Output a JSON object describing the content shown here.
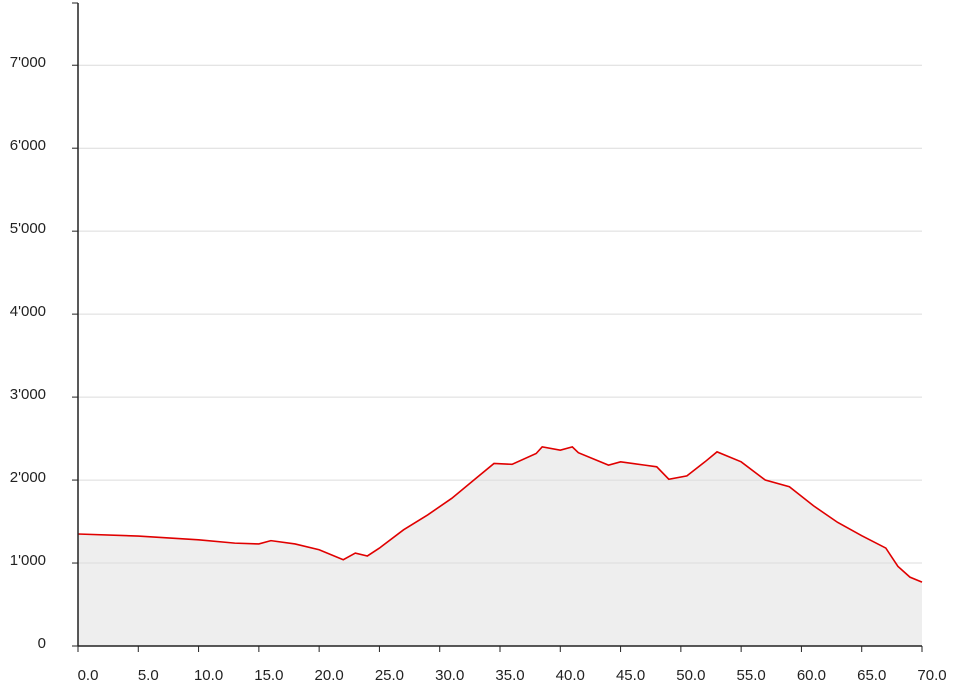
{
  "chart_data": {
    "type": "area",
    "x": [
      0,
      5,
      10,
      13,
      15,
      16,
      18,
      20,
      22,
      23,
      24,
      25,
      27,
      29,
      31,
      33,
      34.5,
      36,
      38,
      38.5,
      40,
      41,
      41.5,
      44,
      45,
      47,
      48,
      49,
      50.5,
      52,
      53,
      55,
      57,
      59,
      61,
      63,
      65,
      67,
      68,
      69,
      70
    ],
    "values": [
      1350,
      1325,
      1280,
      1240,
      1230,
      1270,
      1230,
      1160,
      1040,
      1120,
      1085,
      1180,
      1400,
      1580,
      1780,
      2020,
      2200,
      2190,
      2320,
      2400,
      2360,
      2400,
      2330,
      2180,
      2220,
      2180,
      2160,
      2010,
      2050,
      2220,
      2340,
      2220,
      2000,
      1920,
      1690,
      1490,
      1330,
      1180,
      960,
      830,
      770
    ],
    "color": "#e00000",
    "fill": "#eeeeee",
    "xlim": [
      0,
      70
    ],
    "ylim": [
      0,
      7750
    ],
    "xticks": [
      {
        "value": 0,
        "label": "0.0"
      },
      {
        "value": 5,
        "label": "5.0"
      },
      {
        "value": 10,
        "label": "10.0"
      },
      {
        "value": 15,
        "label": "15.0"
      },
      {
        "value": 20,
        "label": "20.0"
      },
      {
        "value": 25,
        "label": "25.0"
      },
      {
        "value": 30,
        "label": "30.0"
      },
      {
        "value": 35,
        "label": "35.0"
      },
      {
        "value": 40,
        "label": "40.0"
      },
      {
        "value": 45,
        "label": "45.0"
      },
      {
        "value": 50,
        "label": "50.0"
      },
      {
        "value": 55,
        "label": "55.0"
      },
      {
        "value": 60,
        "label": "60.0"
      },
      {
        "value": 65,
        "label": "65.0"
      },
      {
        "value": 70,
        "label": "70.0"
      }
    ],
    "yticks": [
      0,
      {
        "value": 1000,
        "label": "1'000"
      },
      {
        "value": 2000,
        "label": "2'000"
      },
      {
        "value": 3000,
        "label": "3'000"
      },
      {
        "value": 4000,
        "label": "4'000"
      },
      {
        "value": 5000,
        "label": "5'000"
      },
      {
        "value": 6000,
        "label": "6'000"
      },
      {
        "value": 7000,
        "label": "7'000"
      }
    ],
    "grid": true
  }
}
